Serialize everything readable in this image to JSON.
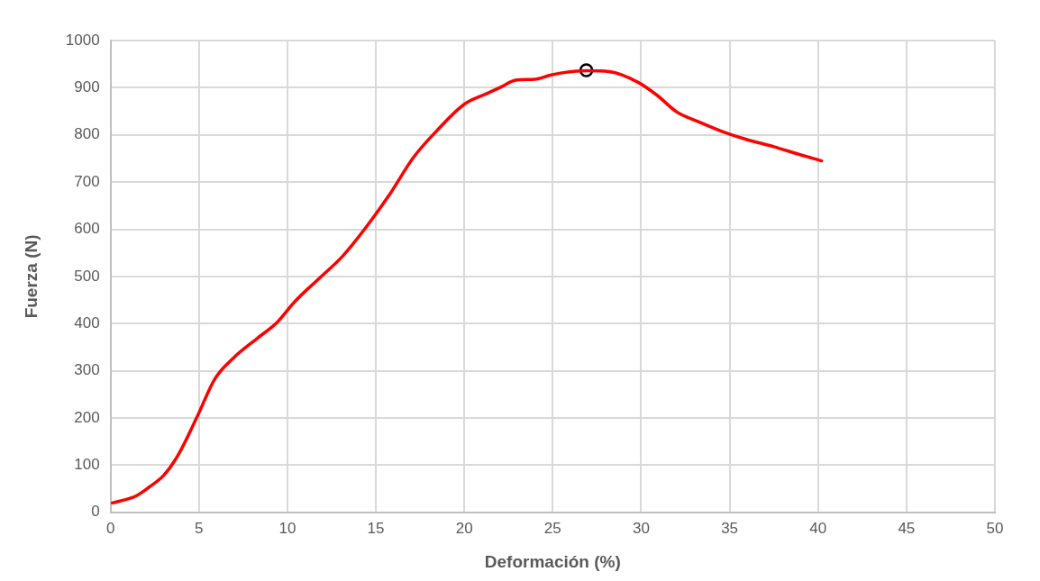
{
  "chart_data": {
    "type": "line",
    "xlabel": "Deformación (%)",
    "ylabel": "Fuerza (N)",
    "xlim": [
      0,
      50
    ],
    "xticks": [
      0,
      5,
      10,
      15,
      20,
      25,
      30,
      35,
      40,
      45,
      50
    ],
    "ylim": [
      0,
      1000
    ],
    "yticks": [
      0,
      100,
      200,
      300,
      400,
      500,
      600,
      700,
      800,
      900,
      1000
    ],
    "grid": true,
    "legend": false,
    "series": [
      {
        "color": "#ff0000",
        "marker": "none",
        "x": [
          0.1,
          1.4,
          2.2,
          3.0,
          3.8,
          4.9,
          5.9,
          7.0,
          8.3,
          9.4,
          10.4,
          11.8,
          13.1,
          14.4,
          15.8,
          17.1,
          18.4,
          20.0,
          21.3,
          22.1,
          22.9,
          24.0,
          24.8,
          25.6,
          26.9,
          28.2,
          29.8,
          30.9,
          32.0,
          33.3,
          34.6,
          35.9,
          37.5,
          38.9,
          40.2
        ],
        "values": [
          20,
          34,
          54,
          78,
          120,
          203,
          283,
          329,
          369,
          402,
          446,
          496,
          542,
          602,
          675,
          751,
          807,
          865,
          888,
          902,
          916,
          918,
          926,
          932,
          936,
          934,
          912,
          884,
          849,
          827,
          807,
          791,
          775,
          759,
          745
        ]
      },
      {
        "type": "scatter",
        "color": "#000000",
        "marker": "circle",
        "x": [
          26.9
        ],
        "values": [
          937
        ]
      }
    ]
  }
}
